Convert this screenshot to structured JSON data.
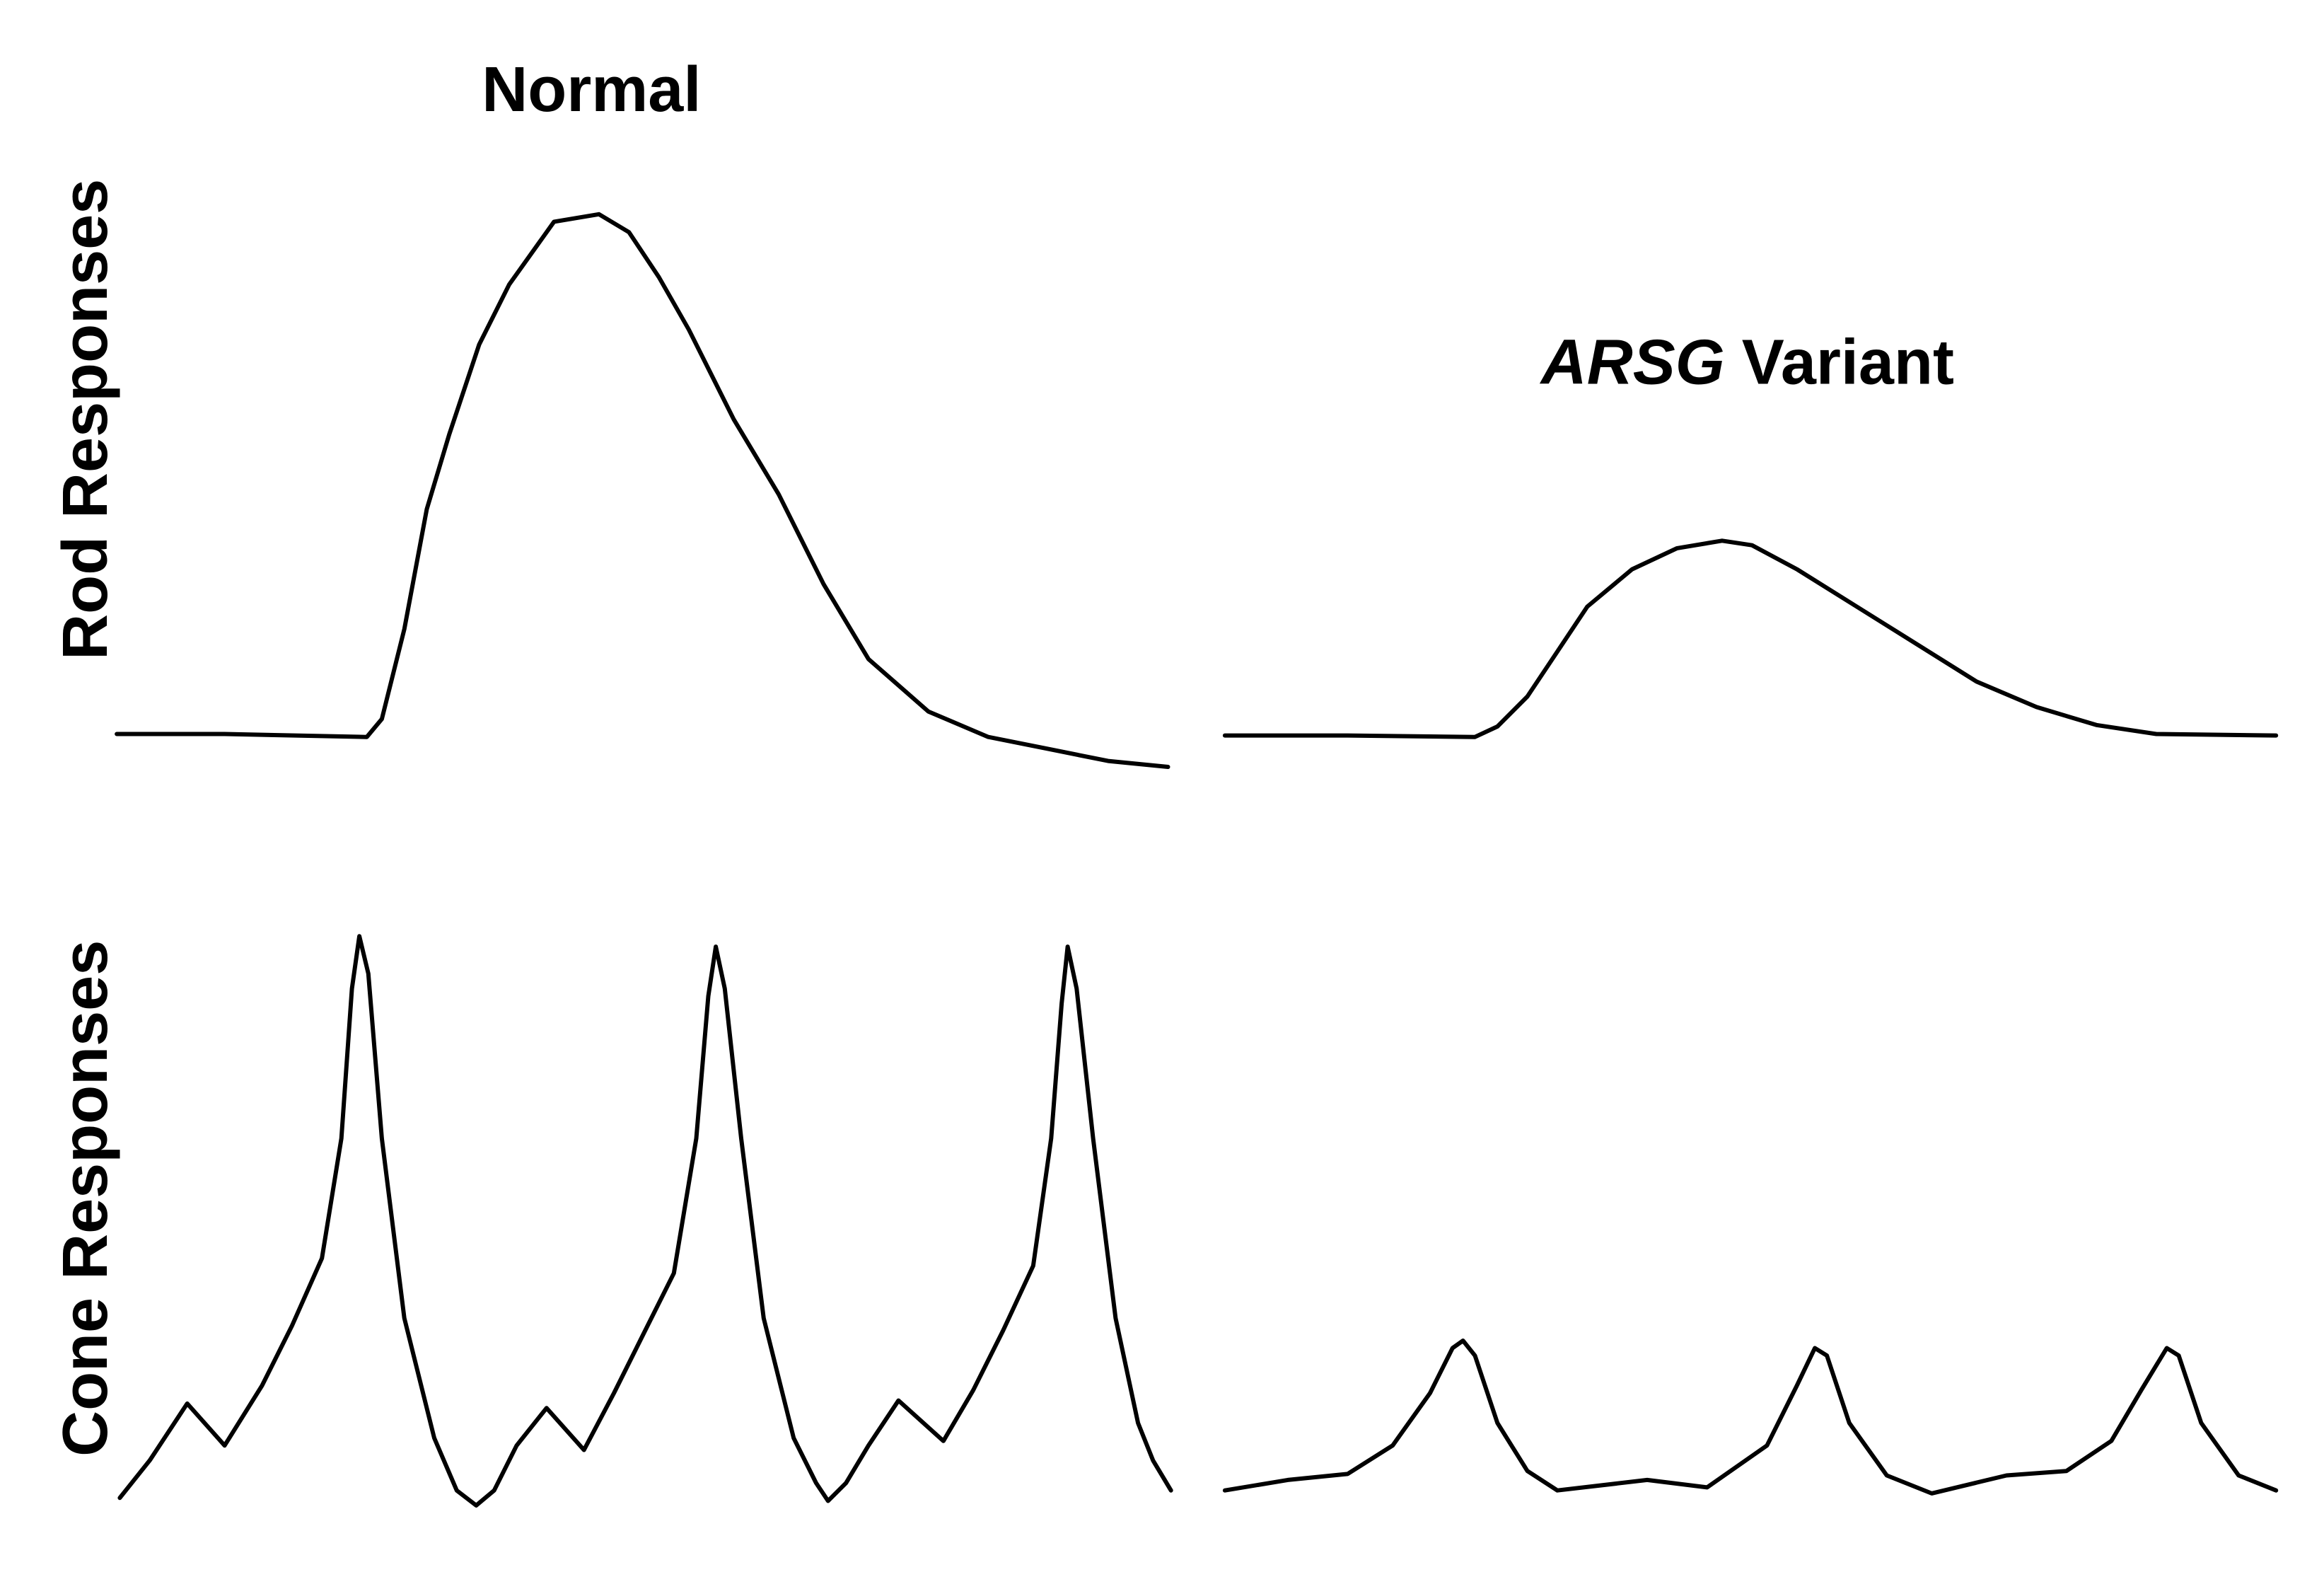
{
  "chart_data": [
    {
      "type": "line",
      "title": "Normal",
      "ylabel": "Rod Responses",
      "color": "#000000",
      "xlim": [
        0,
        705
      ],
      "ylim": [
        0,
        400
      ],
      "x": [
        0,
        72,
        167,
        177,
        192,
        207,
        222,
        242,
        262,
        292,
        322,
        342,
        362,
        382,
        412,
        442,
        472,
        502,
        542,
        582,
        622,
        662,
        702
      ],
      "values": [
        30,
        30,
        28,
        40,
        100,
        180,
        230,
        290,
        330,
        372,
        377,
        365,
        335,
        300,
        240,
        190,
        130,
        80,
        45,
        28,
        20,
        12,
        8
      ]
    },
    {
      "type": "line",
      "title_parts": [
        {
          "text": "ARSG",
          "italic": true
        },
        {
          "text": "Variant",
          "italic": false
        }
      ],
      "color": "#000000",
      "xlim": [
        0,
        705
      ],
      "ylim": [
        0,
        400
      ],
      "x": [
        0,
        82,
        167,
        182,
        202,
        222,
        242,
        272,
        302,
        332,
        352,
        382,
        422,
        462,
        502,
        542,
        582,
        622,
        702
      ],
      "values": [
        29,
        29,
        28,
        35,
        55,
        85,
        115,
        140,
        154,
        159,
        156,
        140,
        115,
        90,
        65,
        48,
        36,
        30,
        29
      ]
    },
    {
      "type": "line",
      "ylabel": "Cone Responses",
      "color": "#000000",
      "xlim": [
        0,
        705
      ],
      "ylim": [
        0,
        400
      ],
      "x": [
        0,
        20,
        45,
        70,
        95,
        115,
        135,
        148,
        155,
        160,
        166,
        175,
        190,
        210,
        225,
        238,
        250,
        265,
        285,
        310,
        330,
        350,
        370,
        385,
        393,
        398,
        404,
        415,
        430,
        450,
        465,
        473,
        485,
        500,
        520,
        550,
        570,
        590,
        610,
        622,
        629,
        633,
        639,
        650,
        665,
        680,
        690,
        702
      ],
      "values": [
        10,
        35,
        73,
        45,
        85,
        125,
        170,
        250,
        350,
        385,
        360,
        250,
        130,
        50,
        15,
        5,
        15,
        45,
        70,
        42,
        80,
        120,
        160,
        250,
        345,
        378,
        350,
        250,
        130,
        50,
        20,
        8,
        20,
        45,
        75,
        48,
        82,
        122,
        165,
        250,
        340,
        378,
        350,
        250,
        130,
        60,
        35,
        15
      ]
    },
    {
      "type": "line",
      "color": "#000000",
      "xlim": [
        0,
        705
      ],
      "ylim": [
        0,
        400
      ],
      "x": [
        0,
        42,
        82,
        112,
        137,
        152,
        159,
        167,
        182,
        202,
        222,
        282,
        322,
        362,
        382,
        394,
        402,
        417,
        442,
        472,
        522,
        562,
        592,
        612,
        629,
        637,
        652,
        677,
        702
      ],
      "values": [
        15,
        22,
        26,
        45,
        80,
        110,
        115,
        105,
        60,
        28,
        15,
        22,
        17,
        45,
        85,
        110,
        105,
        60,
        25,
        13,
        25,
        28,
        48,
        82,
        110,
        105,
        60,
        25,
        15
      ]
    }
  ]
}
